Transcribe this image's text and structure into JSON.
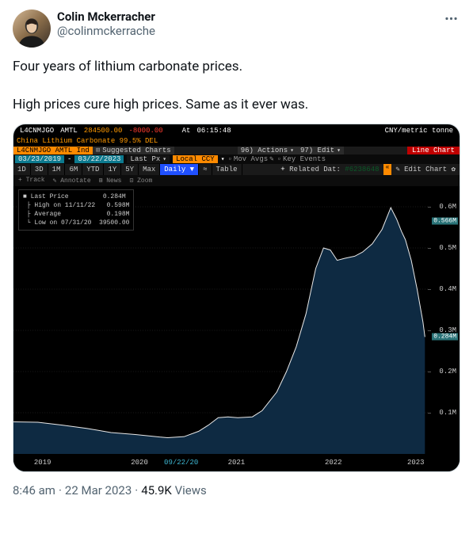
{
  "author": {
    "display_name": "Colin Mckerracher",
    "handle": "@colinmckerrache"
  },
  "tweet_text": "Four years of lithium carbonate prices.\n\nHigh prices cure high prices. Same as it ever was.",
  "meta": {
    "time": "8:46 am",
    "date": "22 Mar 2023",
    "views_count": "45.9K",
    "views_label": "Views"
  },
  "terminal": {
    "header1": {
      "ticker": "L4CNMJGO",
      "exch": "AMTL",
      "last": "284500.00",
      "change": "-8000.00",
      "at_label": "At",
      "time": "06:15:48",
      "unit": "CNY/metric tonne"
    },
    "header2": "China Lithium Carbonate 99.5% DEL",
    "bar3": {
      "indLabel": "L4CNMJGO AMTL Ind",
      "suggested": "Suggested Charts",
      "actions": "96) Actions",
      "edit": "97) Edit",
      "mode": "Line Chart"
    },
    "bar4": {
      "date_from": "03/23/2019",
      "date_to": "03/22/2023",
      "lastpx": "Last Px",
      "localccy": "Local CCY",
      "movavgs": "Mov Avgs",
      "keyevents": "Key Events",
      "related_label": "Related Dat:",
      "related_id": "#6238648",
      "editchart": "Edit Chart"
    },
    "range_toolbar": [
      "1D",
      "3D",
      "1M",
      "6M",
      "YTD",
      "1Y",
      "5Y",
      "Max"
    ],
    "range_active": "Daily ▼",
    "range_chart_icon": "≈",
    "range_table": "Table",
    "sub_toolbar": [
      "+ Track",
      "✎ Annotate",
      "⊞ News",
      "⊡ Zoom"
    ],
    "info_box": "■ Last Price         0.284M\n ├ High on 11/11/22   0.598M\n ├ Average            0.198M\n └ Low on 07/31/20  39500.00",
    "chart": {
      "type": "area",
      "background": "#000000",
      "grid_color": "#1a1a1a",
      "line_color": "#e8e8e8",
      "fill_color": "#0e2a42",
      "x_range": [
        2019.0,
        2023.25
      ],
      "y_range": [
        0,
        650000
      ],
      "y_ticks": [
        {
          "y": 100000,
          "label": "0.1M"
        },
        {
          "y": 200000,
          "label": "0.2M"
        },
        {
          "y": 300000,
          "label": "0.3M"
        },
        {
          "y": 400000,
          "label": "0.4M"
        },
        {
          "y": 500000,
          "label": "0.5M"
        },
        {
          "y": 600000,
          "label": "0.6M"
        }
      ],
      "y_markers": [
        {
          "y": 566000,
          "label": "0.566M"
        },
        {
          "y": 284000,
          "label": "0.284M"
        }
      ],
      "x_ticks": [
        {
          "x": 2019.3,
          "label": "2019",
          "blue": false
        },
        {
          "x": 2020.3,
          "label": "2020",
          "blue": false
        },
        {
          "x": 2020.73,
          "label": "09/22/20",
          "blue": true
        },
        {
          "x": 2021.3,
          "label": "2021",
          "blue": false
        },
        {
          "x": 2022.3,
          "label": "2022",
          "blue": false
        },
        {
          "x": 2023.15,
          "label": "2023",
          "blue": false
        }
      ],
      "series": [
        {
          "x": 2019.0,
          "y": 78000
        },
        {
          "x": 2019.25,
          "y": 77000
        },
        {
          "x": 2019.5,
          "y": 70000
        },
        {
          "x": 2019.75,
          "y": 62000
        },
        {
          "x": 2020.0,
          "y": 52000
        },
        {
          "x": 2020.25,
          "y": 47000
        },
        {
          "x": 2020.5,
          "y": 41000
        },
        {
          "x": 2020.58,
          "y": 39500
        },
        {
          "x": 2020.75,
          "y": 42000
        },
        {
          "x": 2020.9,
          "y": 55000
        },
        {
          "x": 2021.0,
          "y": 70000
        },
        {
          "x": 2021.1,
          "y": 88000
        },
        {
          "x": 2021.2,
          "y": 90000
        },
        {
          "x": 2021.3,
          "y": 88000
        },
        {
          "x": 2021.45,
          "y": 90000
        },
        {
          "x": 2021.55,
          "y": 105000
        },
        {
          "x": 2021.7,
          "y": 150000
        },
        {
          "x": 2021.8,
          "y": 200000
        },
        {
          "x": 2021.9,
          "y": 260000
        },
        {
          "x": 2022.0,
          "y": 340000
        },
        {
          "x": 2022.1,
          "y": 450000
        },
        {
          "x": 2022.18,
          "y": 500000
        },
        {
          "x": 2022.25,
          "y": 495000
        },
        {
          "x": 2022.32,
          "y": 470000
        },
        {
          "x": 2022.4,
          "y": 475000
        },
        {
          "x": 2022.5,
          "y": 480000
        },
        {
          "x": 2022.58,
          "y": 490000
        },
        {
          "x": 2022.68,
          "y": 510000
        },
        {
          "x": 2022.78,
          "y": 545000
        },
        {
          "x": 2022.87,
          "y": 598000
        },
        {
          "x": 2022.93,
          "y": 570000
        },
        {
          "x": 2022.98,
          "y": 540000
        },
        {
          "x": 2023.02,
          "y": 520000
        },
        {
          "x": 2023.08,
          "y": 470000
        },
        {
          "x": 2023.14,
          "y": 400000
        },
        {
          "x": 2023.2,
          "y": 320000
        },
        {
          "x": 2023.22,
          "y": 284000
        }
      ]
    }
  }
}
